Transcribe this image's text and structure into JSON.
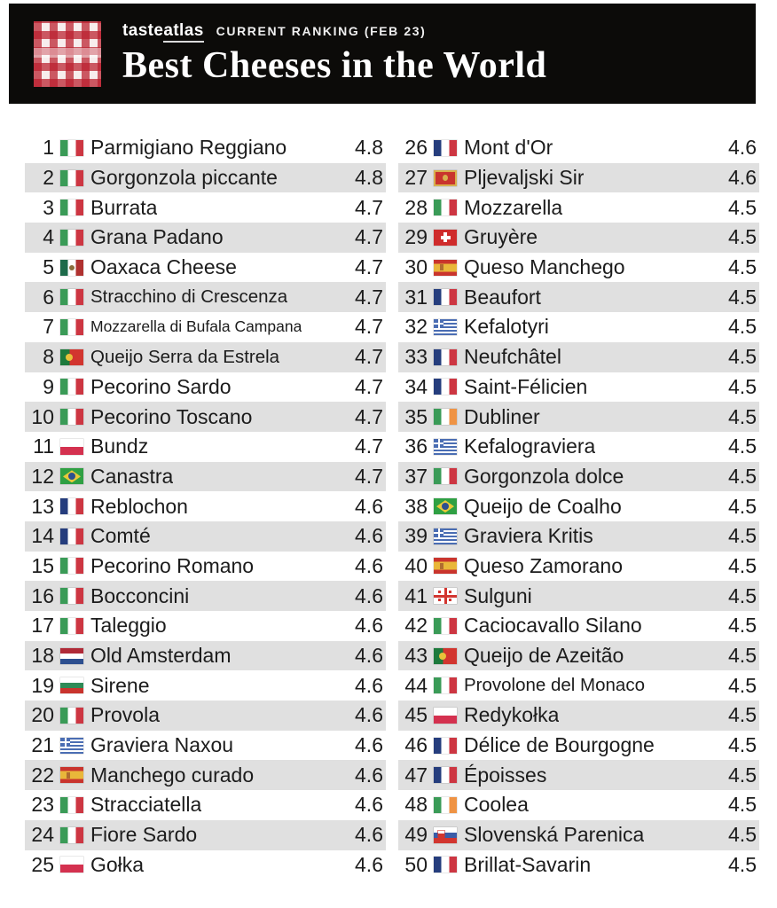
{
  "header": {
    "logo_icon": "gingham-tablecloth-logo",
    "brand_taste": "taste",
    "brand_atlas": "atlas",
    "subtitle": "CURRENT RANKING (FEB 23)",
    "title": "Best Cheeses in the World",
    "background_color": "#0c0b09",
    "logo_red": "#ba1e2d"
  },
  "list": {
    "stripe_color": "#e0e0e0",
    "text_color": "#1c1c1c",
    "rows_per_column": 25
  },
  "chart_data": {
    "type": "table",
    "title": "Best Cheeses in the World",
    "subtitle": "CURRENT RANKING (FEB 23)",
    "columns": [
      "rank",
      "country",
      "cheese",
      "rating"
    ],
    "rows": [
      {
        "rank": 1,
        "country": "Italy",
        "flag": "it",
        "name": "Parmigiano Reggiano",
        "rating": "4.8"
      },
      {
        "rank": 2,
        "country": "Italy",
        "flag": "it",
        "name": "Gorgonzola piccante",
        "rating": "4.8"
      },
      {
        "rank": 3,
        "country": "Italy",
        "flag": "it",
        "name": "Burrata",
        "rating": "4.7"
      },
      {
        "rank": 4,
        "country": "Italy",
        "flag": "it",
        "name": "Grana Padano",
        "rating": "4.7"
      },
      {
        "rank": 5,
        "country": "Mexico",
        "flag": "mx",
        "name": "Oaxaca Cheese",
        "rating": "4.7"
      },
      {
        "rank": 6,
        "country": "Italy",
        "flag": "it",
        "name": "Stracchino di Crescenza",
        "rating": "4.7",
        "name_size": "sm"
      },
      {
        "rank": 7,
        "country": "Italy",
        "flag": "it",
        "name": "Mozzarella di Bufala Campana",
        "rating": "4.7",
        "name_size": "xs"
      },
      {
        "rank": 8,
        "country": "Portugal",
        "flag": "pt",
        "name": "Queijo Serra da Estrela",
        "rating": "4.7",
        "name_size": "sm"
      },
      {
        "rank": 9,
        "country": "Italy",
        "flag": "it",
        "name": "Pecorino Sardo",
        "rating": "4.7"
      },
      {
        "rank": 10,
        "country": "Italy",
        "flag": "it",
        "name": "Pecorino Toscano",
        "rating": "4.7"
      },
      {
        "rank": 11,
        "country": "Poland",
        "flag": "pl",
        "name": "Bundz",
        "rating": "4.7"
      },
      {
        "rank": 12,
        "country": "Brazil",
        "flag": "br",
        "name": "Canastra",
        "rating": "4.7"
      },
      {
        "rank": 13,
        "country": "France",
        "flag": "fr",
        "name": "Reblochon",
        "rating": "4.6"
      },
      {
        "rank": 14,
        "country": "France",
        "flag": "fr",
        "name": "Comté",
        "rating": "4.6"
      },
      {
        "rank": 15,
        "country": "Italy",
        "flag": "it",
        "name": "Pecorino Romano",
        "rating": "4.6"
      },
      {
        "rank": 16,
        "country": "Italy",
        "flag": "it",
        "name": "Bocconcini",
        "rating": "4.6"
      },
      {
        "rank": 17,
        "country": "Italy",
        "flag": "it",
        "name": "Taleggio",
        "rating": "4.6"
      },
      {
        "rank": 18,
        "country": "Netherlands",
        "flag": "nl",
        "name": "Old Amsterdam",
        "rating": "4.6"
      },
      {
        "rank": 19,
        "country": "Bulgaria",
        "flag": "bg",
        "name": "Sirene",
        "rating": "4.6"
      },
      {
        "rank": 20,
        "country": "Italy",
        "flag": "it",
        "name": "Provola",
        "rating": "4.6"
      },
      {
        "rank": 21,
        "country": "Greece",
        "flag": "gr",
        "name": "Graviera Naxou",
        "rating": "4.6"
      },
      {
        "rank": 22,
        "country": "Spain",
        "flag": "es",
        "name": "Manchego curado",
        "rating": "4.6"
      },
      {
        "rank": 23,
        "country": "Italy",
        "flag": "it",
        "name": "Stracciatella",
        "rating": "4.6"
      },
      {
        "rank": 24,
        "country": "Italy",
        "flag": "it",
        "name": "Fiore Sardo",
        "rating": "4.6"
      },
      {
        "rank": 25,
        "country": "Poland",
        "flag": "pl",
        "name": "Gołka",
        "rating": "4.6"
      },
      {
        "rank": 26,
        "country": "France",
        "flag": "fr",
        "name": "Mont d'Or",
        "rating": "4.6"
      },
      {
        "rank": 27,
        "country": "Montenegro",
        "flag": "me",
        "name": "Pljevaljski Sir",
        "rating": "4.6"
      },
      {
        "rank": 28,
        "country": "Italy",
        "flag": "it",
        "name": "Mozzarella",
        "rating": "4.5"
      },
      {
        "rank": 29,
        "country": "Switzerland",
        "flag": "ch",
        "name": "Gruyère",
        "rating": "4.5"
      },
      {
        "rank": 30,
        "country": "Spain",
        "flag": "es",
        "name": "Queso Manchego",
        "rating": "4.5"
      },
      {
        "rank": 31,
        "country": "France",
        "flag": "fr",
        "name": "Beaufort",
        "rating": "4.5"
      },
      {
        "rank": 32,
        "country": "Greece",
        "flag": "gr",
        "name": "Kefalotyri",
        "rating": "4.5"
      },
      {
        "rank": 33,
        "country": "France",
        "flag": "fr",
        "name": "Neufchâtel",
        "rating": "4.5"
      },
      {
        "rank": 34,
        "country": "France",
        "flag": "fr",
        "name": "Saint-Félicien",
        "rating": "4.5"
      },
      {
        "rank": 35,
        "country": "Ireland",
        "flag": "ie",
        "name": "Dubliner",
        "rating": "4.5"
      },
      {
        "rank": 36,
        "country": "Greece",
        "flag": "gr",
        "name": "Kefalograviera",
        "rating": "4.5"
      },
      {
        "rank": 37,
        "country": "Italy",
        "flag": "it",
        "name": "Gorgonzola dolce",
        "rating": "4.5"
      },
      {
        "rank": 38,
        "country": "Brazil",
        "flag": "br",
        "name": "Queijo de Coalho",
        "rating": "4.5"
      },
      {
        "rank": 39,
        "country": "Greece",
        "flag": "gr",
        "name": "Graviera Kritis",
        "rating": "4.5"
      },
      {
        "rank": 40,
        "country": "Spain",
        "flag": "es",
        "name": "Queso Zamorano",
        "rating": "4.5"
      },
      {
        "rank": 41,
        "country": "Georgia",
        "flag": "ge",
        "name": "Sulguni",
        "rating": "4.5"
      },
      {
        "rank": 42,
        "country": "Italy",
        "flag": "it",
        "name": "Caciocavallo Silano",
        "rating": "4.5"
      },
      {
        "rank": 43,
        "country": "Portugal",
        "flag": "pt",
        "name": "Queijo de Azeitão",
        "rating": "4.5"
      },
      {
        "rank": 44,
        "country": "Italy",
        "flag": "it",
        "name": "Provolone del Monaco",
        "rating": "4.5",
        "name_size": "sm"
      },
      {
        "rank": 45,
        "country": "Poland",
        "flag": "pl",
        "name": "Redykołka",
        "rating": "4.5"
      },
      {
        "rank": 46,
        "country": "France",
        "flag": "fr",
        "name": "Délice de Bourgogne",
        "rating": "4.5"
      },
      {
        "rank": 47,
        "country": "France",
        "flag": "fr",
        "name": "Époisses",
        "rating": "4.5"
      },
      {
        "rank": 48,
        "country": "Ireland",
        "flag": "ie",
        "name": "Coolea",
        "rating": "4.5"
      },
      {
        "rank": 49,
        "country": "Slovakia",
        "flag": "sk",
        "name": "Slovenská Parenica",
        "rating": "4.5"
      },
      {
        "rank": 50,
        "country": "France",
        "flag": "fr",
        "name": "Brillat-Savarin",
        "rating": "4.5"
      }
    ]
  }
}
